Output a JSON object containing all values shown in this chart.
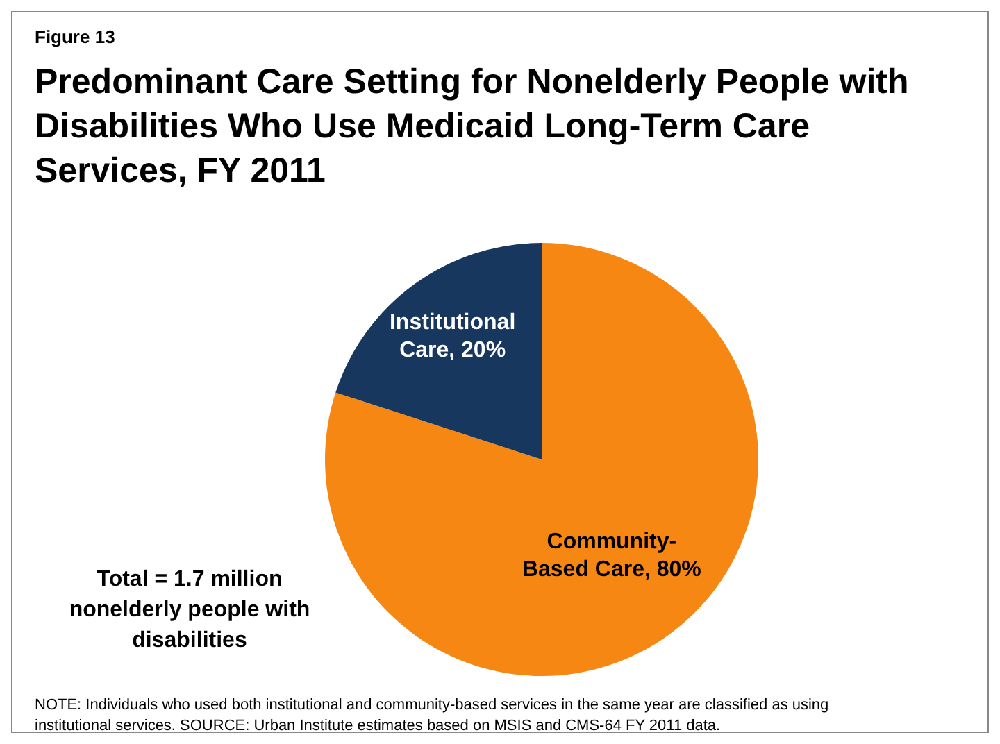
{
  "chart_data": {
    "type": "pie",
    "title": "Predominant Care Setting for Nonelderly People with Disabilities Who Use Medicaid Long-Term Care Services, FY 2011",
    "categories": [
      "Community-Based Care",
      "Institutional Care"
    ],
    "values": [
      80,
      20
    ],
    "value_labels": [
      ", 80%",
      ", 20%"
    ],
    "colors": [
      "#f68712",
      "#17375e"
    ],
    "legend": false,
    "annotations": [
      "Figure 13",
      "Total = 1.7 million nonelderly people with disabilities",
      "NOTE:  Individuals who used both institutional and community-based services in the same year are classified as using institutional services.  SOURCE:  Urban Institute estimates based on MSIS and CMS-64 FY 2011 data."
    ]
  }
}
